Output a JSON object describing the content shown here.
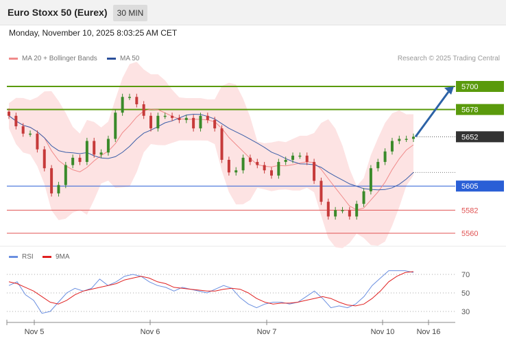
{
  "header": {
    "title": "Euro Stoxx 50 (Eurex)",
    "timeframe": "30 MIN",
    "datetime": "Monday, November 10, 2025 8:03:25 AM CET"
  },
  "legend": {
    "ma20": "MA 20 + Bollinger Bands",
    "ma50": "MA 50",
    "research": "Research © 2025 Trading Central"
  },
  "rsi_legend": {
    "rsi": "RSI",
    "ma9": "9MA"
  },
  "colors": {
    "green": "#5a9a0c",
    "blue": "#2a5fd6",
    "red": "#e05252",
    "dark": "#333333",
    "band": "#fde3e3",
    "ma50": "#3a5ea8",
    "arrow": "#2c62a6",
    "rsi": "#6a8fe0",
    "rsi_ma": "#e02020"
  },
  "chart_data": {
    "type": "candlestick",
    "x_labels": [
      "Nov 5",
      "Nov 6",
      "Nov 7",
      "Nov 10",
      "Nov 16"
    ],
    "levels": [
      {
        "value": 5700,
        "label": "5700",
        "style": "resistance"
      },
      {
        "value": 5678,
        "label": "5678",
        "style": "resistance"
      },
      {
        "value": 5652,
        "label": "5652",
        "style": "last"
      },
      {
        "value": 5605,
        "label": "5605",
        "style": "pivot"
      },
      {
        "value": 5582,
        "label": "5582",
        "style": "support"
      },
      {
        "value": 5560,
        "label": "5560",
        "style": "support"
      }
    ],
    "close_path": [
      5672,
      5662,
      5655,
      5655,
      5640,
      5622,
      5598,
      5606,
      5625,
      5632,
      5628,
      5648,
      5635,
      5637,
      5650,
      5675,
      5690,
      5690,
      5683,
      5672,
      5660,
      5672,
      5672,
      5670,
      5668,
      5670,
      5660,
      5672,
      5668,
      5660,
      5630,
      5618,
      5620,
      5632,
      5628,
      5625,
      5620,
      5615,
      5628,
      5630,
      5634,
      5634,
      5628,
      5610,
      5590,
      5576,
      5582,
      5582,
      5576,
      5588,
      5600,
      5622,
      5628,
      5638,
      5648,
      5650,
      5650,
      5652
    ],
    "forecast_arrow": {
      "from": 5652,
      "to": 5700
    },
    "rsi_ticks": [
      70,
      50,
      30
    ],
    "rsi": [
      58,
      62,
      48,
      42,
      28,
      30,
      40,
      50,
      55,
      52,
      55,
      65,
      58,
      62,
      68,
      70,
      68,
      62,
      58,
      56,
      52,
      56,
      54,
      52,
      50,
      54,
      58,
      55,
      45,
      38,
      34,
      38,
      40,
      40,
      38,
      40,
      46,
      52,
      44,
      34,
      36,
      34,
      38,
      46,
      58,
      66,
      74,
      74,
      74,
      72
    ],
    "rsi_ma": [
      62,
      60,
      56,
      52,
      46,
      40,
      38,
      42,
      48,
      52,
      54,
      56,
      58,
      60,
      64,
      66,
      68,
      66,
      62,
      60,
      56,
      55,
      54,
      53,
      52,
      52,
      54,
      55,
      54,
      50,
      44,
      40,
      38,
      39,
      39,
      40,
      42,
      44,
      46,
      44,
      40,
      37,
      36,
      38,
      44,
      52,
      62,
      68,
      72,
      73
    ]
  }
}
